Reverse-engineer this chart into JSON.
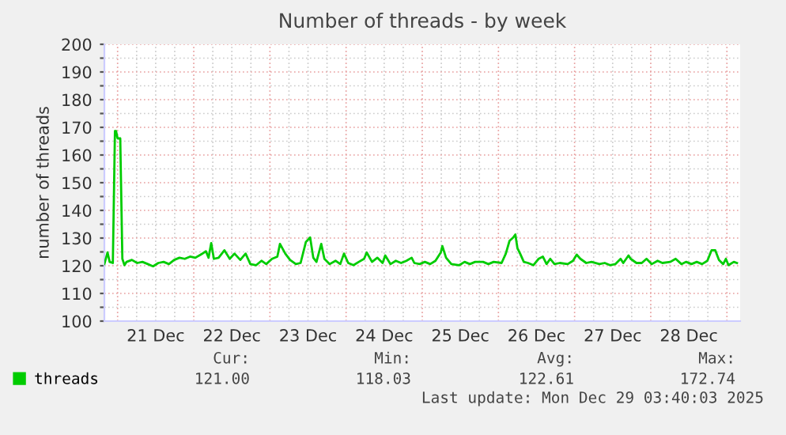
{
  "chart_data": {
    "type": "line",
    "title": "Number of threads - by week",
    "ylabel": "number of threads",
    "x": [
      "2025-12-20T19:50",
      "2025-12-20T20:50",
      "2025-12-20T21:30",
      "2025-12-20T22:30",
      "2025-12-20T23:10",
      "2025-12-20T23:30",
      "2025-12-21T00:00",
      "2025-12-21T00:50",
      "2025-12-21T01:30",
      "2025-12-21T02:10",
      "2025-12-21T02:50",
      "2025-12-21T04:30",
      "2025-12-21T06:10",
      "2025-12-21T07:50",
      "2025-12-21T09:30",
      "2025-12-21T11:10",
      "2025-12-21T12:50",
      "2025-12-21T14:30",
      "2025-12-21T16:10",
      "2025-12-21T17:50",
      "2025-12-21T19:30",
      "2025-12-21T21:10",
      "2025-12-21T22:50",
      "2025-12-22T00:30",
      "2025-12-22T02:10",
      "2025-12-22T03:50",
      "2025-12-22T04:40",
      "2025-12-22T05:30",
      "2025-12-22T06:20",
      "2025-12-22T07:50",
      "2025-12-22T09:40",
      "2025-12-22T11:20",
      "2025-12-22T12:50",
      "2025-12-22T14:40",
      "2025-12-22T16:20",
      "2025-12-22T17:50",
      "2025-12-22T19:40",
      "2025-12-22T21:20",
      "2025-12-22T22:50",
      "2025-12-23T00:40",
      "2025-12-23T02:20",
      "2025-12-23T03:10",
      "2025-12-23T04:50",
      "2025-12-23T06:20",
      "2025-12-23T08:10",
      "2025-12-23T09:40",
      "2025-12-23T11:20",
      "2025-12-23T12:40",
      "2025-12-23T13:40",
      "2025-12-23T14:40",
      "2025-12-23T16:10",
      "2025-12-23T17:10",
      "2025-12-23T18:50",
      "2025-12-23T20:40",
      "2025-12-23T22:10",
      "2025-12-23T23:20",
      "2025-12-24T00:40",
      "2025-12-24T02:20",
      "2025-12-24T04:00",
      "2025-12-24T05:40",
      "2025-12-24T06:30",
      "2025-12-24T08:10",
      "2025-12-24T09:50",
      "2025-12-24T11:30",
      "2025-12-24T12:20",
      "2025-12-24T14:00",
      "2025-12-24T15:40",
      "2025-12-24T17:20",
      "2025-12-24T19:00",
      "2025-12-24T20:40",
      "2025-12-24T21:30",
      "2025-12-24T23:10",
      "2025-12-25T00:50",
      "2025-12-25T02:30",
      "2025-12-25T04:10",
      "2025-12-25T05:50",
      "2025-12-25T06:20",
      "2025-12-25T07:30",
      "2025-12-25T09:10",
      "2025-12-25T11:40",
      "2025-12-25T13:20",
      "2025-12-25T15:00",
      "2025-12-25T16:40",
      "2025-12-25T19:10",
      "2025-12-25T20:50",
      "2025-12-25T22:30",
      "2025-12-26T01:00",
      "2025-12-26T02:20",
      "2025-12-26T03:30",
      "2025-12-26T04:40",
      "2025-12-26T05:20",
      "2025-12-26T06:00",
      "2025-12-26T06:50",
      "2025-12-26T08:00",
      "2025-12-26T09:20",
      "2025-12-26T11:00",
      "2025-12-26T12:40",
      "2025-12-26T14:00",
      "2025-12-26T15:10",
      "2025-12-26T16:20",
      "2025-12-26T17:40",
      "2025-12-26T19:20",
      "2025-12-26T21:50",
      "2025-12-26T23:30",
      "2025-12-27T00:40",
      "2025-12-27T01:50",
      "2025-12-27T03:40",
      "2025-12-27T05:20",
      "2025-12-27T07:50",
      "2025-12-27T09:30",
      "2025-12-27T11:10",
      "2025-12-27T12:50",
      "2025-12-27T14:30",
      "2025-12-27T15:20",
      "2025-12-27T17:00",
      "2025-12-27T17:40",
      "2025-12-27T19:30",
      "2025-12-27T21:10",
      "2025-12-27T22:40",
      "2025-12-28T00:20",
      "2025-12-28T02:10",
      "2025-12-28T03:40",
      "2025-12-28T06:10",
      "2025-12-28T07:50",
      "2025-12-28T09:40",
      "2025-12-28T11:10",
      "2025-12-28T12:50",
      "2025-12-28T14:30",
      "2025-12-28T16:10",
      "2025-12-28T17:50",
      "2025-12-28T19:10",
      "2025-12-28T20:20",
      "2025-12-28T21:30",
      "2025-12-28T22:50",
      "2025-12-28T23:40",
      "2025-12-29T00:30",
      "2025-12-29T02:10",
      "2025-12-29T03:10"
    ],
    "series": [
      {
        "name": "threads",
        "color": "#00cc00",
        "values": [
          120.6,
          124.8,
          121.4,
          121.0,
          168.7,
          168.7,
          166.0,
          166.0,
          122.5,
          120.2,
          121.4,
          122.1,
          121.0,
          121.4,
          120.6,
          119.8,
          121.0,
          121.4,
          120.6,
          122.1,
          122.9,
          122.5,
          123.3,
          122.9,
          124.0,
          125.2,
          122.9,
          128.2,
          122.5,
          122.9,
          125.6,
          122.5,
          124.4,
          122.1,
          124.4,
          120.6,
          120.2,
          121.8,
          120.6,
          122.5,
          123.3,
          127.9,
          124.4,
          122.1,
          120.6,
          121.0,
          128.6,
          130.2,
          122.9,
          121.4,
          127.9,
          122.5,
          120.6,
          121.8,
          120.6,
          124.4,
          121.0,
          120.2,
          121.4,
          122.5,
          124.8,
          121.4,
          122.9,
          121.0,
          123.7,
          120.6,
          121.8,
          121.0,
          121.8,
          122.9,
          121.0,
          120.6,
          121.4,
          120.6,
          121.8,
          124.8,
          127.1,
          122.9,
          120.6,
          120.2,
          121.4,
          120.6,
          121.4,
          121.4,
          120.6,
          121.4,
          121.0,
          124.4,
          129.0,
          130.2,
          131.3,
          126.3,
          124.4,
          121.4,
          121.0,
          120.2,
          122.5,
          123.3,
          120.6,
          122.5,
          120.6,
          121.0,
          120.6,
          121.8,
          124.0,
          122.5,
          121.0,
          121.4,
          120.6,
          121.0,
          120.2,
          120.6,
          122.5,
          121.0,
          123.7,
          122.5,
          121.0,
          121.0,
          122.5,
          120.6,
          121.8,
          121.0,
          121.4,
          122.5,
          120.6,
          121.4,
          120.6,
          121.4,
          120.6,
          121.8,
          125.6,
          125.6,
          122.1,
          120.6,
          122.5,
          120.2,
          121.4,
          121.0
        ]
      }
    ],
    "xlim": [
      "2025-12-20T19:50",
      "2025-12-29T04:10"
    ],
    "xticks": [
      {
        "value": "2025-12-21T00:00",
        "label": null
      },
      {
        "value": "2025-12-21T06:00",
        "label": null
      },
      {
        "value": "2025-12-21T12:00",
        "label": "21 Dec"
      },
      {
        "value": "2025-12-21T18:00",
        "label": null
      },
      {
        "value": "2025-12-22T00:00",
        "label": null
      },
      {
        "value": "2025-12-22T06:00",
        "label": null
      },
      {
        "value": "2025-12-22T12:00",
        "label": "22 Dec"
      },
      {
        "value": "2025-12-22T18:00",
        "label": null
      },
      {
        "value": "2025-12-23T00:00",
        "label": null
      },
      {
        "value": "2025-12-23T06:00",
        "label": null
      },
      {
        "value": "2025-12-23T12:00",
        "label": "23 Dec"
      },
      {
        "value": "2025-12-23T18:00",
        "label": null
      },
      {
        "value": "2025-12-24T00:00",
        "label": null
      },
      {
        "value": "2025-12-24T06:00",
        "label": null
      },
      {
        "value": "2025-12-24T12:00",
        "label": "24 Dec"
      },
      {
        "value": "2025-12-24T18:00",
        "label": null
      },
      {
        "value": "2025-12-25T00:00",
        "label": null
      },
      {
        "value": "2025-12-25T06:00",
        "label": null
      },
      {
        "value": "2025-12-25T12:00",
        "label": "25 Dec"
      },
      {
        "value": "2025-12-25T18:00",
        "label": null
      },
      {
        "value": "2025-12-26T00:00",
        "label": null
      },
      {
        "value": "2025-12-26T06:00",
        "label": null
      },
      {
        "value": "2025-12-26T12:00",
        "label": "26 Dec"
      },
      {
        "value": "2025-12-26T18:00",
        "label": null
      },
      {
        "value": "2025-12-27T00:00",
        "label": null
      },
      {
        "value": "2025-12-27T06:00",
        "label": null
      },
      {
        "value": "2025-12-27T12:00",
        "label": "27 Dec"
      },
      {
        "value": "2025-12-27T18:00",
        "label": null
      },
      {
        "value": "2025-12-28T00:00",
        "label": null
      },
      {
        "value": "2025-12-28T06:00",
        "label": null
      },
      {
        "value": "2025-12-28T12:00",
        "label": "28 Dec"
      },
      {
        "value": "2025-12-28T18:00",
        "label": null
      },
      {
        "value": "2025-12-29T00:00",
        "label": null
      }
    ],
    "ylim": [
      100,
      200
    ],
    "yticks": [
      100,
      {
        "value": 105,
        "label": null
      },
      110,
      {
        "value": 115,
        "label": null
      },
      120,
      {
        "value": 125,
        "label": null
      },
      130,
      {
        "value": 135,
        "label": null
      },
      140,
      {
        "value": 145,
        "label": null
      },
      150,
      {
        "value": 155,
        "label": null
      },
      160,
      {
        "value": 165,
        "label": null
      },
      170,
      {
        "value": 175,
        "label": null
      },
      180,
      {
        "value": 185,
        "label": null
      },
      190,
      {
        "value": 195,
        "label": null
      },
      200
    ],
    "grid": true,
    "legend": "bottom",
    "marker": "none",
    "line_style": "solid",
    "annotations": [
      "Cur:",
      "Min:",
      "Avg:",
      "Max:",
      "121.00",
      "118.03",
      "122.61",
      "172.74",
      "Last update: Mon Dec 29 03:40:03 2025"
    ]
  }
}
